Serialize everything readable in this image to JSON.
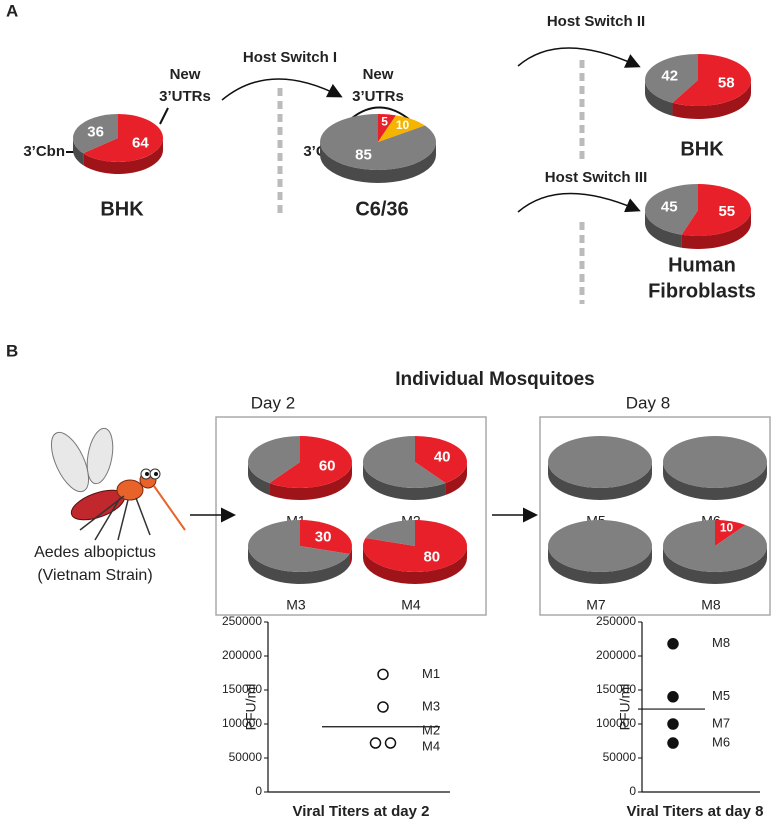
{
  "panel_a": {
    "panel_label": "A",
    "callouts": [
      {
        "lines": [
          "New",
          "3’UTRs"
        ]
      },
      {
        "lines": [
          "3’Cbn"
        ]
      },
      {
        "lines": [
          "New",
          "3’UTRs"
        ]
      },
      {
        "lines": [
          "3’Cbn"
        ]
      }
    ],
    "arrows": [
      "Host Switch I",
      "Host Switch II",
      "Host Switch III"
    ]
  },
  "panel_b": {
    "panel_label": "B",
    "title": "Individual Mosquitoes",
    "day_labels": [
      "Day 2",
      "Day 8"
    ],
    "organism": [
      "Aedes albopictus",
      "(Vietnam Strain)"
    ]
  },
  "chart_data": [
    {
      "type": "pie",
      "label": "BHK",
      "values": [
        64,
        36
      ],
      "colors": [
        "#e8202a",
        "#808080"
      ]
    },
    {
      "type": "pie",
      "label": "C6/36",
      "values": [
        5,
        10,
        85
      ],
      "colors": [
        "#e8202a",
        "#f5b400",
        "#808080"
      ]
    },
    {
      "type": "pie",
      "label": "BHK",
      "values": [
        58,
        42
      ],
      "colors": [
        "#e8202a",
        "#808080"
      ]
    },
    {
      "type": "pie",
      "label": [
        "Human",
        "Fibroblasts"
      ],
      "values": [
        55,
        45
      ],
      "colors": [
        "#e8202a",
        "#808080"
      ]
    },
    {
      "type": "pie",
      "label": "M1",
      "values": [
        60,
        40
      ],
      "labeled": [
        true,
        false
      ],
      "colors": [
        "#e8202a",
        "#808080"
      ]
    },
    {
      "type": "pie",
      "label": "M2",
      "values": [
        40,
        60
      ],
      "labeled": [
        true,
        false
      ],
      "colors": [
        "#e8202a",
        "#808080"
      ]
    },
    {
      "type": "pie",
      "label": "M3",
      "values": [
        30,
        70
      ],
      "labeled": [
        true,
        false
      ],
      "colors": [
        "#e8202a",
        "#808080"
      ]
    },
    {
      "type": "pie",
      "label": "M4",
      "values": [
        80,
        20
      ],
      "labeled": [
        true,
        false
      ],
      "colors": [
        "#e8202a",
        "#808080"
      ]
    },
    {
      "type": "pie",
      "label": "M5",
      "values": [
        0,
        100
      ],
      "labeled": [
        false,
        false
      ],
      "colors": [
        "#e8202a",
        "#808080"
      ]
    },
    {
      "type": "pie",
      "label": "M6",
      "values": [
        0,
        100
      ],
      "labeled": [
        false,
        false
      ],
      "colors": [
        "#e8202a",
        "#808080"
      ]
    },
    {
      "type": "pie",
      "label": "M7",
      "values": [
        0,
        100
      ],
      "labeled": [
        false,
        false
      ],
      "colors": [
        "#e8202a",
        "#808080"
      ]
    },
    {
      "type": "pie",
      "label": "M8",
      "values": [
        10,
        90
      ],
      "labeled": [
        true,
        false
      ],
      "colors": [
        "#e8202a",
        "#808080"
      ]
    },
    {
      "type": "scatter",
      "title": "Viral Titers at day 2",
      "y_label": "PFU/ml",
      "names": [
        "M1",
        "M3",
        "M2",
        "M4"
      ],
      "values": [
        173000,
        125000,
        72000,
        72000
      ],
      "median": 96000,
      "marker_fill": "none",
      "ylim": [
        0,
        250000
      ],
      "yticks": [
        0,
        50000,
        100000,
        150000,
        200000,
        250000
      ]
    },
    {
      "type": "scatter",
      "title": "Viral Titers at day 8",
      "y_label": "PFU/ml",
      "names": [
        "M8",
        "M5",
        "M7",
        "M6"
      ],
      "values": [
        218000,
        140000,
        100000,
        72000
      ],
      "median": 122000,
      "marker_fill": "#111",
      "ylim": [
        0,
        250000
      ],
      "yticks": [
        0,
        50000,
        100000,
        150000,
        200000,
        250000
      ]
    }
  ]
}
